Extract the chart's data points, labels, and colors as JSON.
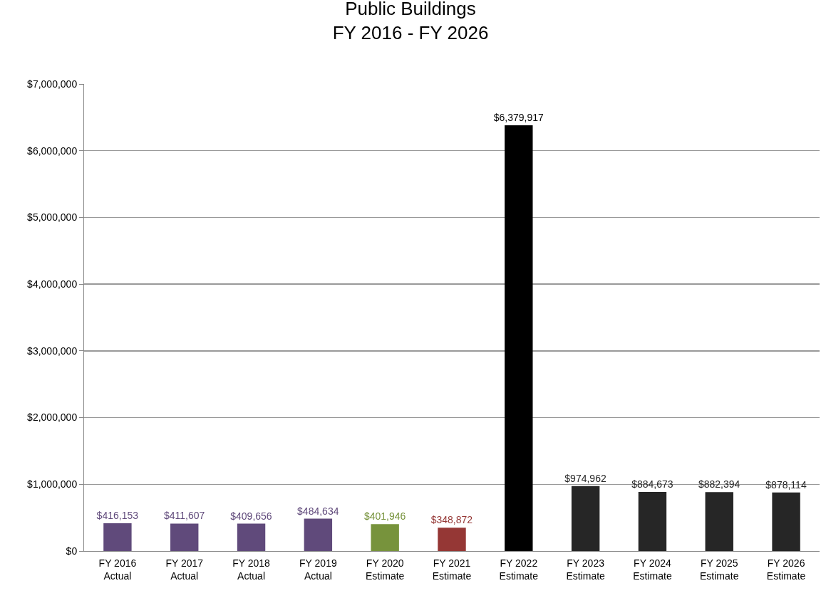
{
  "chart_data": {
    "type": "bar",
    "title": "Public Buildings\nFY 2016 - FY 2026",
    "categories": [
      "FY 2016\nActual",
      "FY 2017\nActual",
      "FY 2018\nActual",
      "FY 2019\nActual",
      "FY 2020\nEstimate",
      "FY 2021\nEstimate",
      "FY 2022\nEstimate",
      "FY 2023\nEstimate",
      "FY 2024\nEstimate",
      "FY 2025\nEstimate",
      "FY 2026\nEstimate"
    ],
    "values": [
      416153,
      411607,
      409656,
      484634,
      401946,
      348872,
      6379917,
      974962,
      884673,
      882394,
      878114
    ],
    "colors": [
      "#604a7b",
      "#604a7b",
      "#604a7b",
      "#604a7b",
      "#77933c",
      "#953735",
      "#000000",
      "#262626",
      "#262626",
      "#262626",
      "#262626"
    ],
    "ylim": [
      0,
      7000000
    ],
    "yticks": [
      {
        "value": 0,
        "label": "$0"
      },
      {
        "value": 1000000,
        "label": "$1,000,000"
      },
      {
        "value": 2000000,
        "label": "$2,000,000"
      },
      {
        "value": 3000000,
        "label": "$3,000,000"
      },
      {
        "value": 4000000,
        "label": "$4,000,000"
      },
      {
        "value": 5000000,
        "label": "$5,000,000"
      },
      {
        "value": 6000000,
        "label": "$6,000,000"
      },
      {
        "value": 7000000,
        "label": "$7,000,000"
      }
    ],
    "value_labels": [
      "$416,153",
      "$411,607",
      "$409,656",
      "$484,634",
      "$401,946",
      "$348,872",
      "$6,379,917",
      "$974,962",
      "$884,673",
      "$882,394",
      "$878,114"
    ],
    "grid": "y"
  }
}
